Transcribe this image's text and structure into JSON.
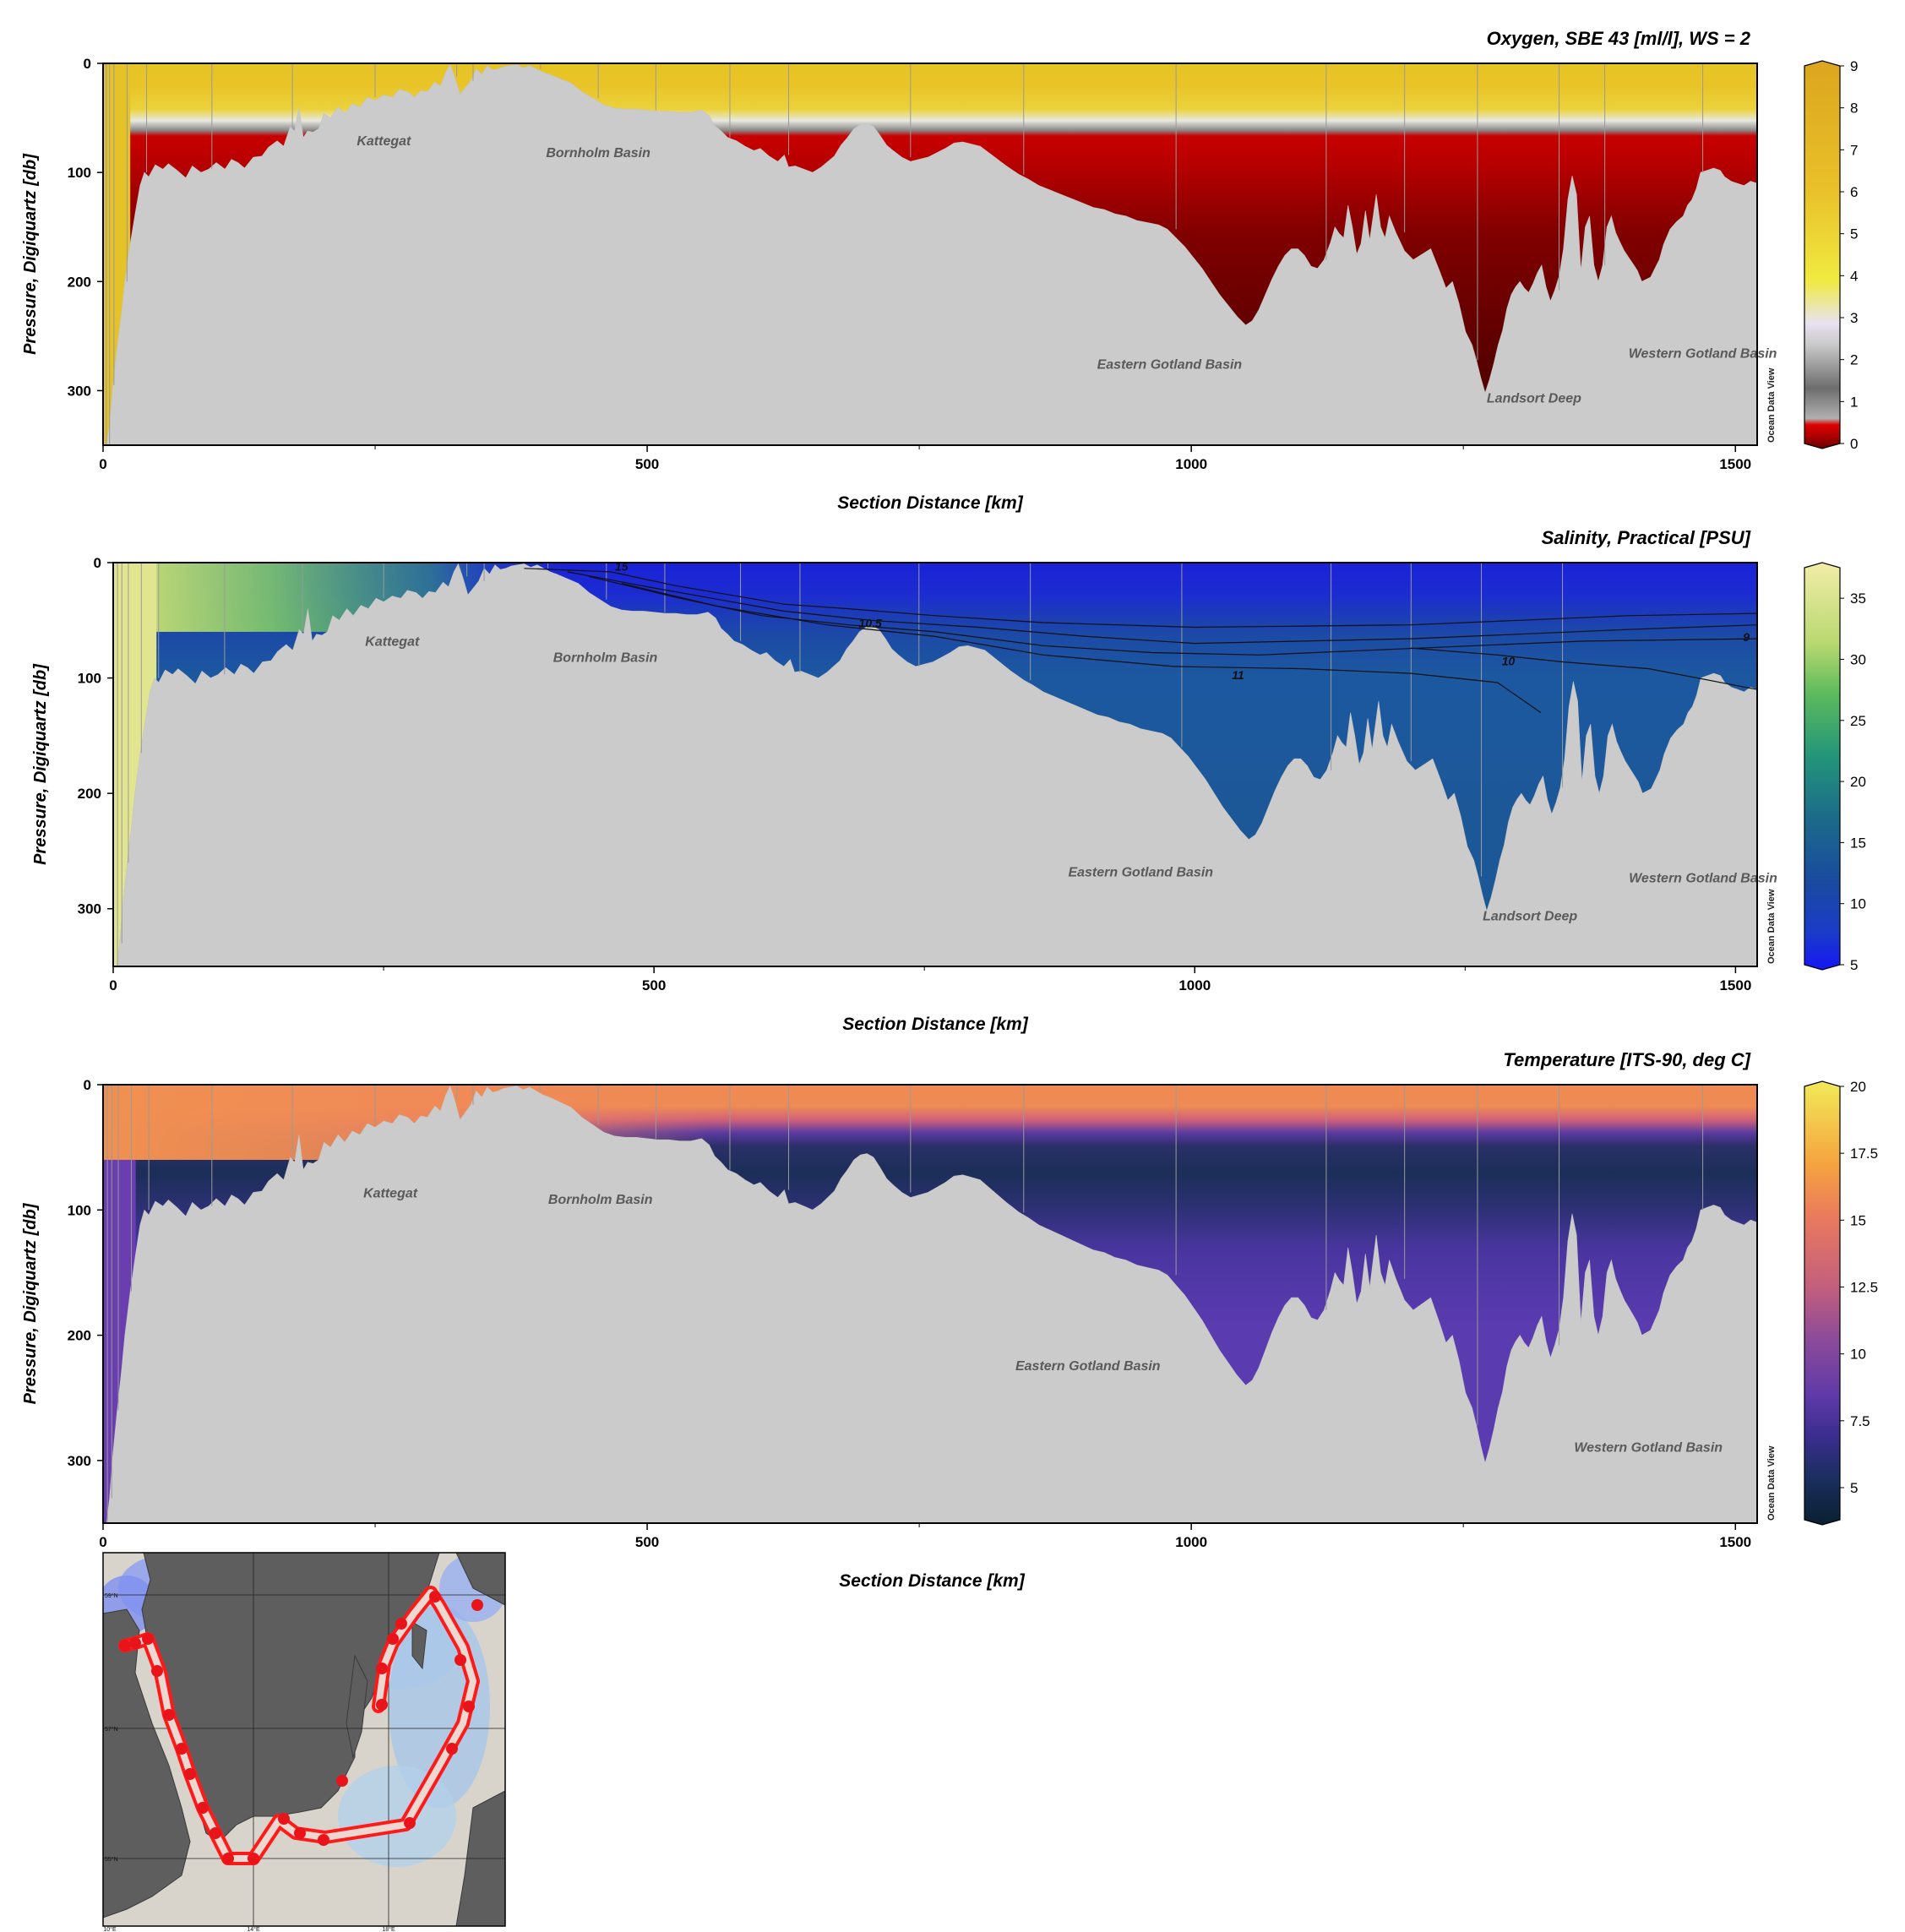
{
  "chart_data": [
    {
      "type": "heatmap",
      "title": "Oxygen, SBE 43 [ml/l], WS = 2",
      "xlabel": "Section Distance [km]",
      "ylabel": "Pressure, Digiquartz [db]",
      "xlim": [
        0,
        1520
      ],
      "ylim": [
        350,
        0
      ],
      "xticks": [
        0,
        500,
        1000,
        1500
      ],
      "yticks": [
        0,
        100,
        200,
        300
      ],
      "colorbar": {
        "min": 0,
        "max": 9,
        "ticks": [
          0,
          1,
          2,
          3,
          4,
          5,
          6,
          7,
          8,
          9
        ],
        "stops": [
          [
            "#ffffff",
            0
          ],
          [
            "#6b0000",
            0
          ],
          [
            "#b80000",
            0.35
          ],
          [
            "#e00000",
            0.55
          ],
          [
            "#b0b0b0",
            0.7
          ],
          [
            "#6d6d6d",
            1.4
          ],
          [
            "#c8c8c8",
            2.4
          ],
          [
            "#e8e2f2",
            2.9
          ],
          [
            "#f0ea40",
            3.9
          ],
          [
            "#e9c02a",
            6
          ],
          [
            "#dca61e",
            9
          ]
        ]
      },
      "annotations": [
        "Kattegat",
        "Bornholm Basin",
        "Eastern Gotland Basin",
        "Western Gotland Basin",
        "Landsort Deep"
      ],
      "watermark": "Ocean Data View"
    },
    {
      "type": "heatmap",
      "title": "Salinity, Practical [PSU]",
      "xlabel": "Section Distance [km]",
      "ylabel": "Pressure, Digiquartz [db]",
      "xlim": [
        0,
        1520
      ],
      "ylim": [
        350,
        0
      ],
      "xticks": [
        0,
        500,
        1000,
        1500
      ],
      "yticks": [
        0,
        100,
        200,
        300
      ],
      "colorbar": {
        "min": 5,
        "max": 37.5,
        "ticks": [
          5,
          10,
          15,
          20,
          25,
          30,
          35
        ],
        "stops": [
          [
            "#1616f5",
            5
          ],
          [
            "#1a3cc8",
            8
          ],
          [
            "#1a4aa0",
            12
          ],
          [
            "#1c6a8a",
            17
          ],
          [
            "#23957a",
            22
          ],
          [
            "#5cba5c",
            27
          ],
          [
            "#b8d870",
            31
          ],
          [
            "#f2eda8",
            37.5
          ]
        ]
      },
      "contours": [
        "15",
        "10.5",
        "11",
        "10",
        "9"
      ],
      "annotations": [
        "Kattegat",
        "Bornholm Basin",
        "Eastern Gotland Basin",
        "Western Gotland Basin",
        "Landsort Deep"
      ],
      "watermark": "Ocean Data View"
    },
    {
      "type": "heatmap",
      "title": "Temperature [ITS-90, deg C]",
      "xlabel": "Section Distance [km]",
      "ylabel": "Pressure, Digiquartz [db]",
      "xlim": [
        0,
        1520
      ],
      "ylim": [
        350,
        0
      ],
      "xticks": [
        0,
        500,
        1000,
        1500
      ],
      "yticks": [
        0,
        100,
        200,
        300
      ],
      "colorbar": {
        "min": 3.8,
        "max": 20,
        "ticks": [
          "5",
          "7.5",
          "10",
          "12.5",
          "15",
          "17.5",
          "20"
        ],
        "stops": [
          [
            "#0a2030",
            3.8
          ],
          [
            "#1a2e5e",
            5.5
          ],
          [
            "#3a2d8e",
            7
          ],
          [
            "#5f3aa8",
            8.5
          ],
          [
            "#8a4a9a",
            10.5
          ],
          [
            "#c35f7d",
            12.5
          ],
          [
            "#e9795e",
            15
          ],
          [
            "#f5a440",
            17
          ],
          [
            "#f2ea58",
            20
          ]
        ]
      },
      "annotations": [
        "Kattegat",
        "Bornholm Basin",
        "Eastern Gotland Basin",
        "Western Gotland Basin"
      ],
      "watermark": "Ocean Data View"
    }
  ],
  "map": {
    "lat_labels": [
      "59°N",
      "57°N",
      "55°N"
    ],
    "lon_labels": [
      "10°E",
      "14°E",
      "18°E"
    ]
  }
}
